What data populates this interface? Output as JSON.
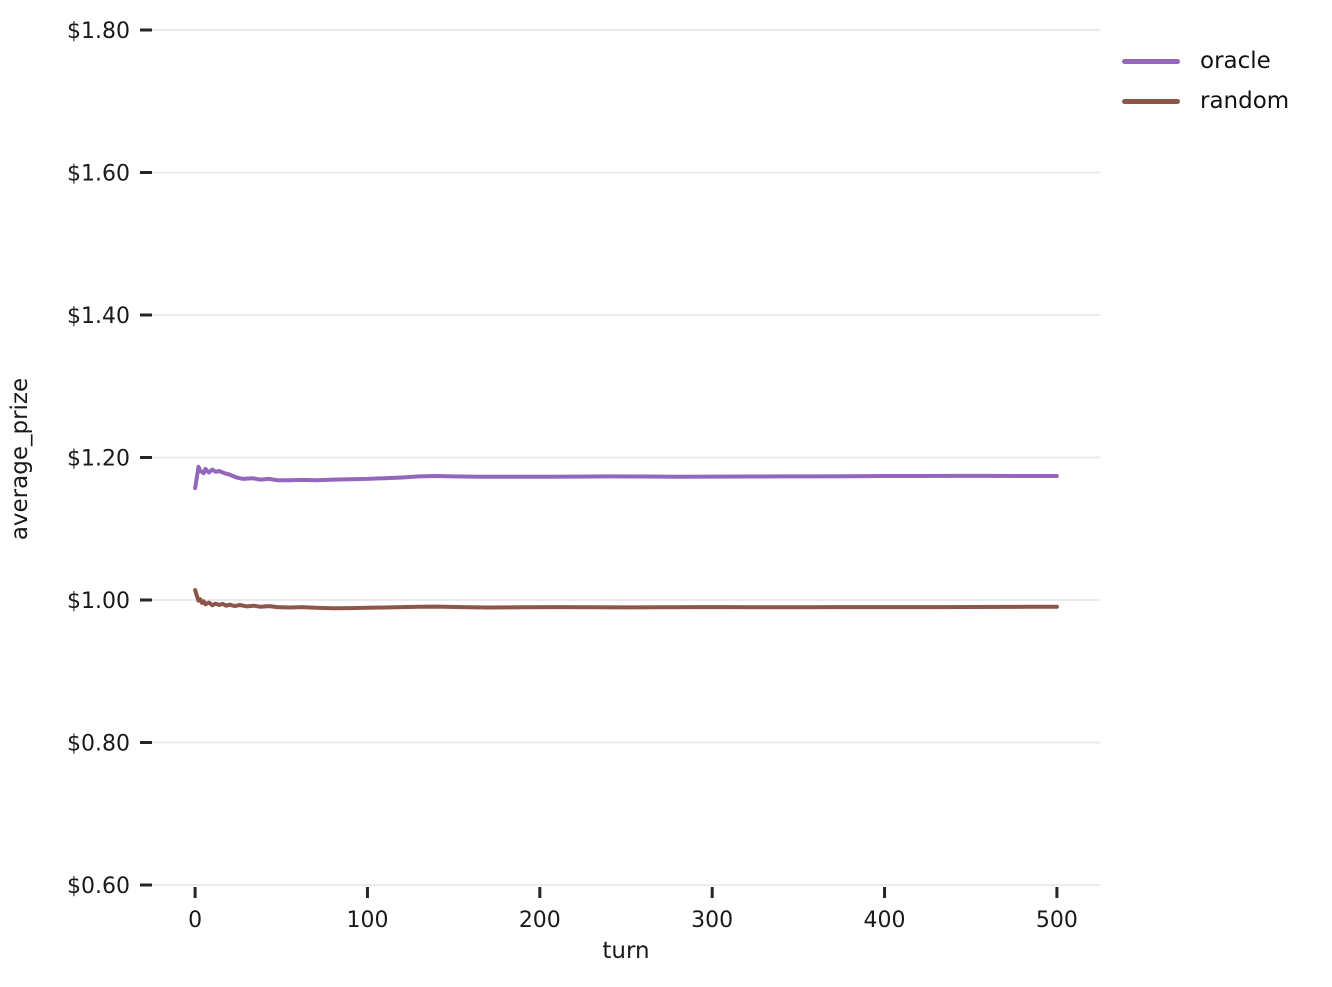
{
  "figure": {
    "background": "#ffffff",
    "text_color": "#1a1a1a",
    "gridline_color": "#ebebeb",
    "tick_mark_color": "#262626"
  },
  "chart_data": {
    "type": "line",
    "title": "",
    "xlabel": "turn",
    "ylabel": "average_prize",
    "xlim": [
      -25,
      525
    ],
    "ylim": [
      0.6,
      1.8
    ],
    "grid": "horizontal",
    "x_ticks": [
      0,
      100,
      200,
      300,
      400,
      500
    ],
    "x_tick_labels": [
      "0",
      "100",
      "200",
      "300",
      "400",
      "500"
    ],
    "y_ticks": [
      0.6,
      0.8,
      1.0,
      1.2,
      1.4,
      1.6,
      1.8
    ],
    "y_tick_labels": [
      "$0.60",
      "$0.80",
      "$1.00",
      "$1.20",
      "$1.40",
      "$1.60",
      "$1.80"
    ],
    "legend": {
      "position": "upper-right-outside",
      "entries": [
        {
          "label": "oracle",
          "color": "#9467bd"
        },
        {
          "label": "random",
          "color": "#8c564b"
        }
      ]
    },
    "series": [
      {
        "name": "oracle",
        "color": "#9467bd",
        "x": [
          0,
          1,
          2,
          3,
          4,
          5,
          6,
          8,
          10,
          12,
          14,
          17,
          20,
          24,
          28,
          33,
          38,
          43,
          48,
          55,
          62,
          70,
          80,
          90,
          100,
          110,
          120,
          130,
          140,
          150,
          165,
          180,
          200,
          220,
          240,
          260,
          280,
          300,
          320,
          340,
          360,
          380,
          400,
          420,
          440,
          460,
          480,
          500
        ],
        "y": [
          1.157,
          1.172,
          1.187,
          1.181,
          1.18,
          1.178,
          1.184,
          1.179,
          1.183,
          1.18,
          1.181,
          1.178,
          1.176,
          1.172,
          1.17,
          1.171,
          1.169,
          1.17,
          1.168,
          1.168,
          1.1685,
          1.168,
          1.169,
          1.1695,
          1.17,
          1.171,
          1.172,
          1.1735,
          1.174,
          1.1735,
          1.173,
          1.173,
          1.173,
          1.1732,
          1.1735,
          1.1733,
          1.173,
          1.1732,
          1.1733,
          1.1735,
          1.1735,
          1.1737,
          1.174,
          1.174,
          1.1742,
          1.1742,
          1.174,
          1.174
        ]
      },
      {
        "name": "random",
        "color": "#8c564b",
        "x": [
          0,
          1,
          2,
          3,
          4,
          5,
          6,
          8,
          10,
          12,
          14,
          16,
          18,
          20,
          23,
          26,
          30,
          34,
          38,
          43,
          48,
          55,
          62,
          70,
          80,
          90,
          100,
          110,
          120,
          130,
          140,
          155,
          170,
          190,
          210,
          230,
          250,
          270,
          290,
          310,
          330,
          350,
          370,
          390,
          410,
          430,
          450,
          470,
          485,
          500
        ],
        "y": [
          1.014,
          1.006,
          0.999,
          1.001,
          0.996,
          0.998,
          0.994,
          0.9965,
          0.9925,
          0.995,
          0.993,
          0.9945,
          0.992,
          0.9935,
          0.9915,
          0.993,
          0.991,
          0.992,
          0.9905,
          0.9915,
          0.99,
          0.9895,
          0.99,
          0.989,
          0.9885,
          0.9887,
          0.989,
          0.9895,
          0.99,
          0.9905,
          0.9908,
          0.99,
          0.9895,
          0.9898,
          0.99,
          0.9898,
          0.9896,
          0.9898,
          0.99,
          0.99,
          0.9898,
          0.9898,
          0.99,
          0.99,
          0.99,
          0.99,
          0.9902,
          0.9903,
          0.9904,
          0.9905
        ]
      }
    ]
  }
}
